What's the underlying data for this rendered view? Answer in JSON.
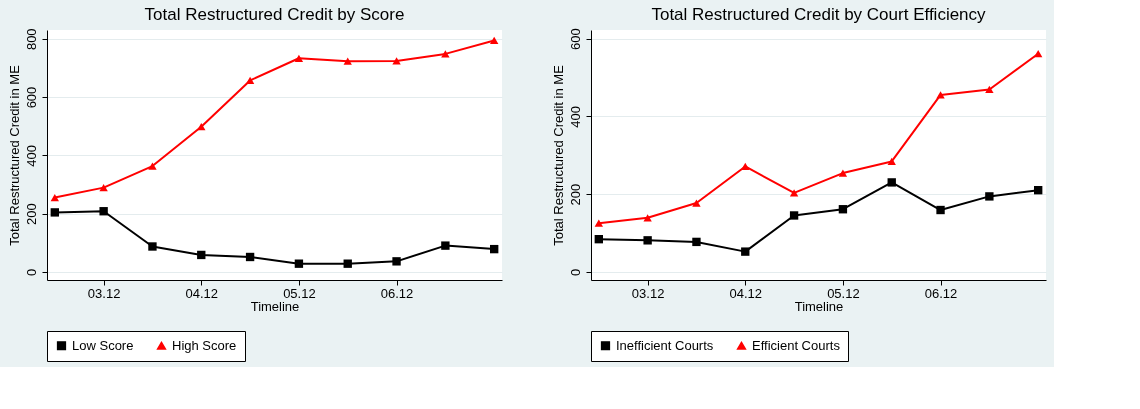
{
  "chart_data": [
    {
      "type": "line",
      "title": "Total Restructured Credit by Score",
      "xlabel": "Timeline",
      "ylabel": "Total Restructured Credit in ME",
      "categories": [
        null,
        "03.12",
        null,
        "04.12",
        null,
        "05.12",
        null,
        "06.12",
        null,
        null
      ],
      "ylim": [
        -28,
        830
      ],
      "yticks": [
        0,
        200,
        400,
        600,
        800
      ],
      "grid": "y",
      "legend": "bottom",
      "series": [
        {
          "name": "Low Score",
          "color": "#000000",
          "marker": "square",
          "values": [
            204,
            208,
            87,
            58,
            51,
            28,
            28,
            36,
            90,
            78
          ]
        },
        {
          "name": "High Score",
          "color": "#ff0000",
          "marker": "triangle",
          "values": [
            255,
            289,
            363,
            498,
            657,
            733,
            723,
            724,
            748,
            794
          ]
        }
      ]
    },
    {
      "type": "line",
      "title": "Total Restructured Credit by Court Efficiency",
      "xlabel": "Timeline",
      "ylabel": "Total Restructured Credit in ME",
      "categories": [
        null,
        "03.12",
        null,
        "04.12",
        null,
        "05.12",
        null,
        "06.12",
        null,
        null
      ],
      "ylim": [
        -21,
        622
      ],
      "yticks": [
        0,
        200,
        400,
        600
      ],
      "grid": "y",
      "legend": "bottom",
      "series": [
        {
          "name": "Inefficient Courts",
          "color": "#000000",
          "marker": "square",
          "values": [
            84,
            81,
            77,
            52,
            145,
            161,
            230,
            159,
            194,
            210
          ]
        },
        {
          "name": "Efficient Courts",
          "color": "#ff0000",
          "marker": "triangle",
          "values": [
            125,
            139,
            177,
            271,
            203,
            254,
            284,
            455,
            469,
            561
          ]
        }
      ]
    }
  ]
}
